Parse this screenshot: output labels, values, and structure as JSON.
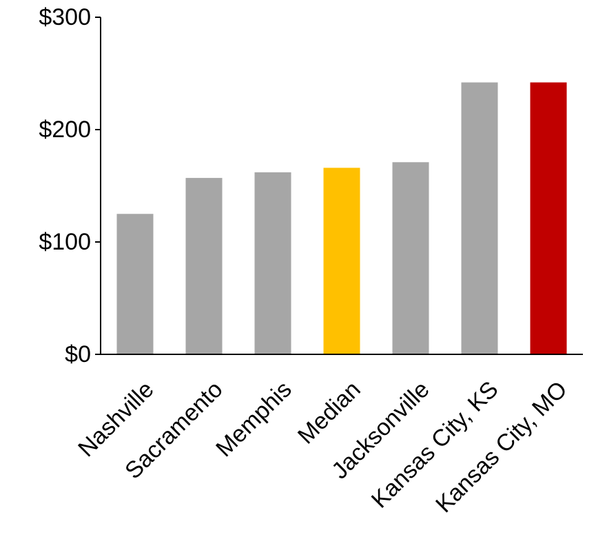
{
  "chart_data": {
    "type": "bar",
    "title": "",
    "xlabel": "",
    "ylabel": "",
    "categories": [
      "Nashville",
      "Sacramento",
      "Memphis",
      "Median",
      "Jacksonville",
      "Kansas City, KS",
      "Kansas City, MO"
    ],
    "values": [
      125,
      157,
      162,
      166,
      171,
      242,
      242
    ],
    "bar_colors": [
      "#a6a6a6",
      "#a6a6a6",
      "#a6a6a6",
      "#ffc000",
      "#a6a6a6",
      "#a6a6a6",
      "#c00000"
    ],
    "ylim": [
      0,
      300
    ],
    "yticks": [
      0,
      100,
      200,
      300
    ],
    "ytick_labels": [
      "$0",
      "$100",
      "$200",
      "$300"
    ],
    "grid": false,
    "legend": "none"
  }
}
